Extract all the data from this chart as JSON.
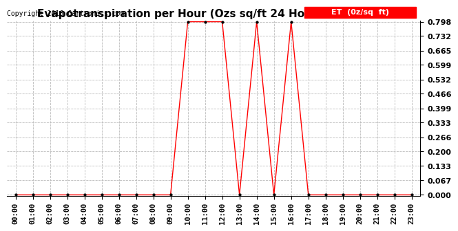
{
  "title": "Evapotranspiration per Hour (Ozs sq/ft 24 Hours) 20160419",
  "copyright": "Copyright 2016 Cartronics.com",
  "legend_label": "ET  (0z/sq  ft)",
  "line_color": "#ff0000",
  "marker_color": "#000000",
  "background_color": "#ffffff",
  "grid_color": "#bbbbbb",
  "ymin": 0.0,
  "ymax": 0.798,
  "yticks": [
    0.0,
    0.067,
    0.133,
    0.2,
    0.266,
    0.333,
    0.399,
    0.466,
    0.532,
    0.599,
    0.665,
    0.732,
    0.798
  ],
  "hours": [
    0,
    1,
    2,
    3,
    4,
    5,
    6,
    7,
    8,
    9,
    10,
    11,
    12,
    13,
    14,
    15,
    16,
    17,
    18,
    19,
    20,
    21,
    22,
    23
  ],
  "values": [
    0.0,
    0.0,
    0.0,
    0.0,
    0.0,
    0.0,
    0.0,
    0.0,
    0.0,
    0.0,
    0.798,
    0.798,
    0.798,
    0.0,
    0.798,
    0.0,
    0.798,
    0.0,
    0.0,
    0.0,
    0.0,
    0.0,
    0.0,
    0.0
  ],
  "title_fontsize": 11,
  "tick_fontsize": 7.5,
  "copyright_fontsize": 7,
  "legend_fontsize": 8
}
